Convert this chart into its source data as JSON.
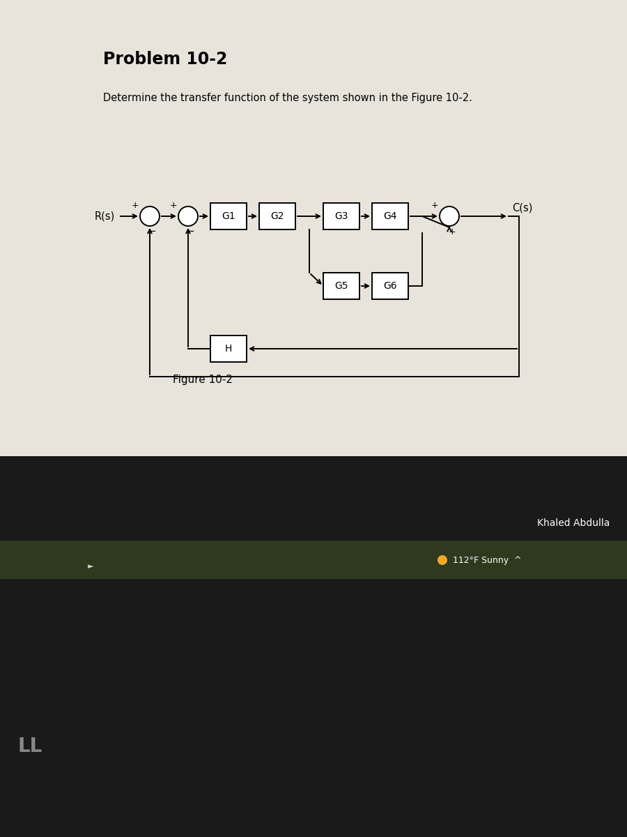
{
  "title": "Problem 10-2",
  "subtitle": "Determine the transfer function of the system shown in the Figure 10-2.",
  "figure_label": "Figure 10-2",
  "cream_bg": "#e8e4dc",
  "dark_bg": "#1a1a1a",
  "box_face": "#ffffff",
  "box_edge": "#000000",
  "line_color": "#000000",
  "title_fontsize": 17,
  "subtitle_fontsize": 10.5,
  "block_fontsize": 10,
  "sign_fontsize": 9,
  "label_fontsize": 10.5,
  "fig_label_fontsize": 11
}
